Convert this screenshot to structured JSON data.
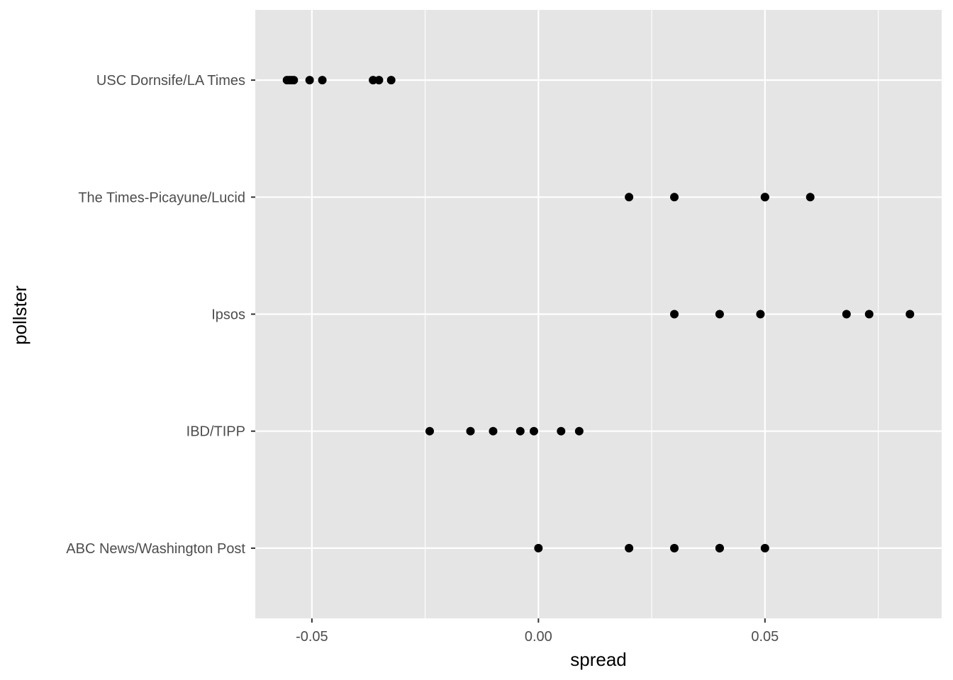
{
  "chart_data": {
    "type": "scatter",
    "xlabel": "spread",
    "ylabel": "pollster",
    "xlim": [
      -0.0625,
      0.089
    ],
    "x_ticks": [
      {
        "value": -0.05,
        "label": "-0.05"
      },
      {
        "value": 0.0,
        "label": "0.00"
      },
      {
        "value": 0.05,
        "label": "0.05"
      }
    ],
    "x_minor_ticks": [
      -0.025,
      0.025,
      0.075
    ],
    "categories": [
      "ABC News/Washington Post",
      "IBD/TIPP",
      "Ipsos",
      "The Times-Picayune/Lucid",
      "USC Dornsife/LA Times"
    ],
    "grid": true,
    "colors": {
      "panel": "#e5e5e5",
      "grid": "#ffffff",
      "point": "#000000"
    },
    "points": [
      {
        "category": "USC Dornsife/LA Times",
        "x": -0.0555
      },
      {
        "category": "USC Dornsife/LA Times",
        "x": -0.055
      },
      {
        "category": "USC Dornsife/LA Times",
        "x": -0.0545
      },
      {
        "category": "USC Dornsife/LA Times",
        "x": -0.054
      },
      {
        "category": "USC Dornsife/LA Times",
        "x": -0.0505
      },
      {
        "category": "USC Dornsife/LA Times",
        "x": -0.0477
      },
      {
        "category": "USC Dornsife/LA Times",
        "x": -0.0365
      },
      {
        "category": "USC Dornsife/LA Times",
        "x": -0.0352
      },
      {
        "category": "USC Dornsife/LA Times",
        "x": -0.0325
      },
      {
        "category": "The Times-Picayune/Lucid",
        "x": 0.02
      },
      {
        "category": "The Times-Picayune/Lucid",
        "x": 0.03
      },
      {
        "category": "The Times-Picayune/Lucid",
        "x": 0.05
      },
      {
        "category": "The Times-Picayune/Lucid",
        "x": 0.05
      },
      {
        "category": "The Times-Picayune/Lucid",
        "x": 0.06
      },
      {
        "category": "Ipsos",
        "x": 0.03
      },
      {
        "category": "Ipsos",
        "x": 0.04
      },
      {
        "category": "Ipsos",
        "x": 0.049
      },
      {
        "category": "Ipsos",
        "x": 0.068
      },
      {
        "category": "Ipsos",
        "x": 0.073
      },
      {
        "category": "Ipsos",
        "x": 0.082
      },
      {
        "category": "IBD/TIPP",
        "x": -0.024
      },
      {
        "category": "IBD/TIPP",
        "x": -0.015
      },
      {
        "category": "IBD/TIPP",
        "x": -0.01
      },
      {
        "category": "IBD/TIPP",
        "x": -0.004
      },
      {
        "category": "IBD/TIPP",
        "x": -0.001
      },
      {
        "category": "IBD/TIPP",
        "x": 0.005
      },
      {
        "category": "IBD/TIPP",
        "x": 0.009
      },
      {
        "category": "ABC News/Washington Post",
        "x": 0.0
      },
      {
        "category": "ABC News/Washington Post",
        "x": 0.02
      },
      {
        "category": "ABC News/Washington Post",
        "x": 0.03
      },
      {
        "category": "ABC News/Washington Post",
        "x": 0.04
      },
      {
        "category": "ABC News/Washington Post",
        "x": 0.04
      },
      {
        "category": "ABC News/Washington Post",
        "x": 0.05
      }
    ]
  }
}
